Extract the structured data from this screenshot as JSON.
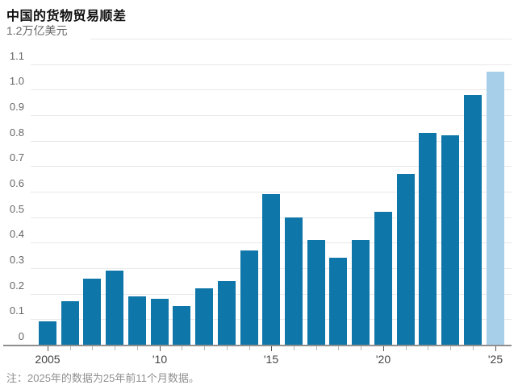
{
  "chart_data": {
    "type": "bar",
    "title": "中国的货物贸易顺差",
    "unit_label": "1.2万亿美元",
    "note": "注：2025年的数据为25年前11个月数据。",
    "categories": [
      "2005",
      "2006",
      "2007",
      "2008",
      "2009",
      "2010",
      "2011",
      "2012",
      "2013",
      "2014",
      "2015",
      "2016",
      "2017",
      "2018",
      "2019",
      "2020",
      "2021",
      "2022",
      "2023",
      "2024",
      "2025"
    ],
    "values": [
      0.09,
      0.17,
      0.26,
      0.29,
      0.19,
      0.18,
      0.15,
      0.22,
      0.25,
      0.37,
      0.59,
      0.5,
      0.41,
      0.34,
      0.41,
      0.52,
      0.67,
      0.83,
      0.82,
      0.98,
      1.07
    ],
    "highlight_index": 20,
    "ylim": [
      0,
      1.2
    ],
    "grid": true,
    "legend_position": "none",
    "y_ticks": [
      {
        "value": 0.0,
        "label": "0"
      },
      {
        "value": 0.1,
        "label": "0.1"
      },
      {
        "value": 0.2,
        "label": "0.2"
      },
      {
        "value": 0.3,
        "label": "0.3"
      },
      {
        "value": 0.4,
        "label": "0.4"
      },
      {
        "value": 0.5,
        "label": "0.5"
      },
      {
        "value": 0.6,
        "label": "0.6"
      },
      {
        "value": 0.7,
        "label": "0.7"
      },
      {
        "value": 0.8,
        "label": "0.8"
      },
      {
        "value": 0.9,
        "label": "0.9"
      },
      {
        "value": 1.0,
        "label": "1.0"
      },
      {
        "value": 1.1,
        "label": "1.1"
      },
      {
        "value": 1.2,
        "label": "1.2万亿美元",
        "is_unit": true
      }
    ],
    "x_tick_labels": [
      {
        "index": 0,
        "label": "2005"
      },
      {
        "index": 5,
        "label": "'10"
      },
      {
        "index": 10,
        "label": "'15"
      },
      {
        "index": 15,
        "label": "'20"
      },
      {
        "index": 20,
        "label": "'25"
      }
    ],
    "colors": {
      "bar": "#0e76a8",
      "highlight_bar": "#a8cfe9",
      "gridline": "#e8e8e8",
      "baseline": "#8f8f8f",
      "y_label": "#666666",
      "x_label": "#444444",
      "title": "#111111",
      "note": "#8f8f8f"
    }
  }
}
